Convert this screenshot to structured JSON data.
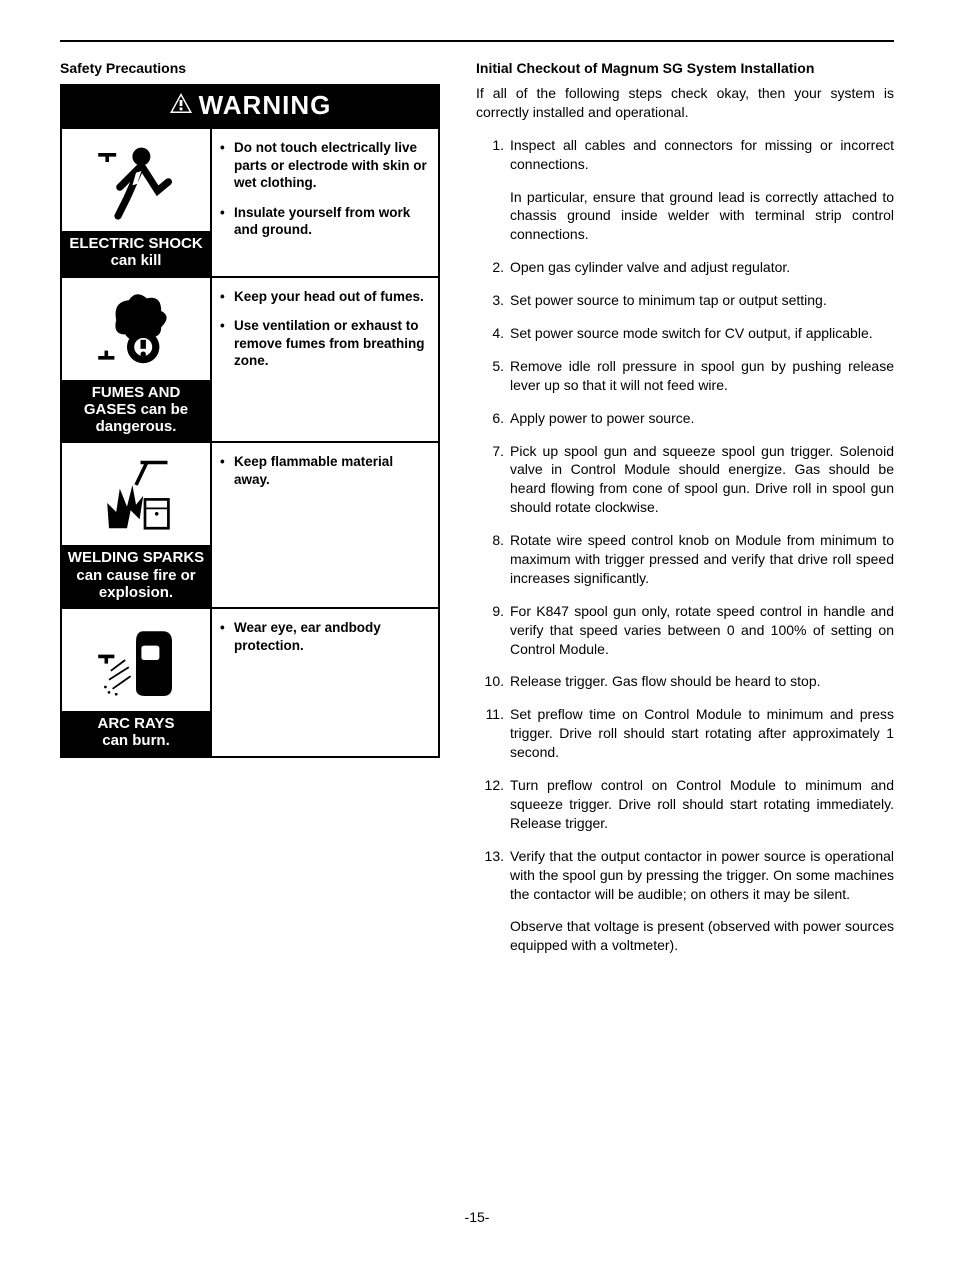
{
  "left": {
    "heading": "Safety Precautions",
    "warning_label": "WARNING",
    "rows": [
      {
        "caption": "ELECTRIC SHOCK\ncan kill",
        "bullets": [
          "Do not touch electrically live parts or electrode with skin or wet clothing.",
          "Insulate yourself from work and ground."
        ]
      },
      {
        "caption": "FUMES AND\nGASES can be\ndangerous.",
        "bullets": [
          "Keep your head out of fumes.",
          "Use ventilation or exhaust to remove fumes from breathing zone."
        ]
      },
      {
        "caption": "WELDING SPARKS\ncan cause fire or\nexplosion.",
        "bullets": [
          "Keep flammable material away."
        ]
      },
      {
        "caption": "ARC RAYS\ncan burn.",
        "bullets": [
          "Wear eye, ear andbody protection."
        ]
      }
    ]
  },
  "right": {
    "heading": "Initial Checkout of Magnum SG System Installation",
    "intro": "If all of the following steps check okay, then your system is correctly installed and operational.",
    "steps": [
      {
        "text": "Inspect all cables and connectors for missing or incorrect connections.",
        "sub": "In particular, ensure that ground lead is correctly attached to chassis ground inside welder with terminal strip control connections."
      },
      {
        "text": "Open gas cylinder valve and adjust regulator."
      },
      {
        "text": "Set power source to minimum tap or output setting."
      },
      {
        "text": "Set power source mode switch for CV output, if applicable."
      },
      {
        "text": "Remove idle roll pressure in spool gun by pushing release lever up so that it will not feed wire."
      },
      {
        "text": "Apply power to power source."
      },
      {
        "text": "Pick up spool gun and squeeze spool gun trigger. Solenoid valve in Control Module should energize. Gas should be heard flowing from cone of spool gun. Drive roll in spool gun should rotate clockwise."
      },
      {
        "text": "Rotate wire speed control knob on Module from minimum to maximum with trigger pressed and verify that drive roll speed increases significantly."
      },
      {
        "text": "For K847 spool gun only, rotate speed control in handle and verify that speed varies between 0 and 100% of setting on Control Module."
      },
      {
        "text": "Release trigger. Gas flow should be heard to stop."
      },
      {
        "text": "Set preflow time on Control Module to minimum and press trigger. Drive roll should start rotating after approximately 1 second."
      },
      {
        "text": "Turn preflow control on Control Module to minimum and squeeze trigger. Drive roll should start rotating immediately. Release trigger."
      },
      {
        "text": "Verify that the output contactor in power source is operational with the spool gun by pressing the trigger. On some machines the contactor will be audible; on others it may be silent.",
        "sub": "Observe that voltage is present (observed with power sources equipped with a voltmeter)."
      }
    ]
  },
  "page_number": "-15-",
  "icons": {
    "shock_svg": "<svg viewBox='0 0 100 100' width='90' height='90'><line x1='8' y1='22' x2='28' y2='22' stroke='#000' stroke-width='4'/><line x1='18' y1='22' x2='18' y2='30' stroke='#000' stroke-width='4'/><circle cx='56' cy='24' r='10' fill='#000'/><path d='M56 34 L40 70 L30 90 M56 34 L74 62 L86 52 M56 34 L32 58' stroke='#000' stroke-width='8' fill='none' stroke-linecap='round'/><polygon points='50,42 46,56 52,54 48,68 58,50 52,52 56,40' fill='#fff'/></svg>",
    "fumes_svg": "<svg viewBox='0 0 100 100' width='90' height='90'><line x1='8' y1='82' x2='26' y2='82' stroke='#000' stroke-width='4'/><line x1='17' y1='82' x2='17' y2='74' stroke='#000' stroke-width='4'/><path d='M28 40 Q24 20 42 18 Q50 6 62 16 Q78 12 78 30 Q90 36 78 48 Q78 62 60 58 Q48 70 38 56 Q24 56 28 40 Z' fill='#000'/><circle cx='58' cy='70' r='18' fill='#000'/><circle cx='58' cy='70' r='10' fill='#fff'/><rect x='55' y='62' width='6' height='10' fill='#000'/><circle cx='58' cy='78' r='3' fill='#000'/></svg>",
    "sparks_svg": "<svg viewBox='0 0 100 100' width='90' height='90'><line x1='55' y1='15' x2='85' y2='15' stroke='#000' stroke-width='4'/><line x1='62' y1='15' x2='50' y2='40' stroke='#000' stroke-width='4'/><polygon points='20,88 18,60 28,70 32,44 40,64 46,40 50,62 58,52 54,78 44,68 40,88' fill='#000'/><rect x='60' y='56' width='26' height='32' fill='none' stroke='#000' stroke-width='3'/><line x1='60' y1='66' x2='86' y2='66' stroke='#000' stroke-width='2'/><circle cx='73' cy='72' r='2' fill='#000'/></svg>",
    "arc_svg": "<svg viewBox='0 0 100 100' width='90' height='90'><line x1='8' y1='46' x2='26' y2='46' stroke='#000' stroke-width='4'/><line x1='17' y1='46' x2='17' y2='54' stroke='#000' stroke-width='4'/><path d='M58 18 Q50 18 50 30 L50 82 Q50 90 60 90 L80 90 Q90 90 90 80 L90 30 Q90 18 80 18 Z' fill='#000'/><rect x='56' y='34' width='20' height='16' rx='3' fill='#fff'/><g stroke='#000' stroke-width='2'><line x1='22' y1='62' x2='38' y2='50'/><line x1='20' y1='72' x2='42' y2='58'/><line x1='24' y1='82' x2='44' y2='68'/></g><circle cx='20' cy='86' r='1.5' fill='#000'/><circle cx='28' cy='88' r='1.5' fill='#000'/><circle cx='16' cy='80' r='1.5' fill='#000'/></svg>"
  }
}
